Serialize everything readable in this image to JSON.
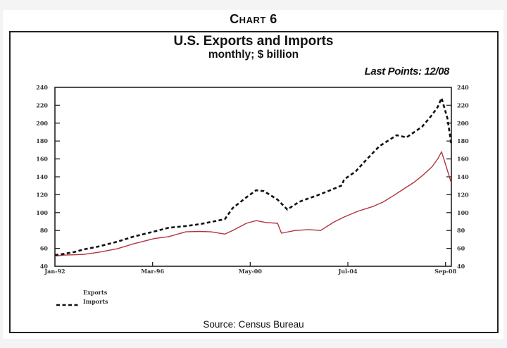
{
  "header": {
    "chart_number": "Chart 6",
    "title": "U.S. Exports and Imports",
    "subtitle": "monthly; $ billion",
    "last_points": "Last Points: 12/08"
  },
  "footer": {
    "source": "Source:  Census Bureau"
  },
  "colors": {
    "exports": "#b0353d",
    "imports": "#111111",
    "axis": "#222222"
  },
  "chart_data": {
    "type": "line",
    "title": "U.S. Exports and Imports",
    "subtitle": "monthly; $ billion",
    "xlabel": "",
    "ylabel": "$ billion",
    "x_unit": "months since Jan-92",
    "xlim": [
      0,
      203
    ],
    "ylim": [
      40,
      240
    ],
    "x_ticks": [
      {
        "label": "Jan-92",
        "month": 0
      },
      {
        "label": "Mar-96",
        "month": 50
      },
      {
        "label": "May-00",
        "month": 100
      },
      {
        "label": "Jul-04",
        "month": 150
      },
      {
        "label": "Sep-08",
        "month": 200
      }
    ],
    "y_ticks": [
      40,
      60,
      80,
      100,
      120,
      140,
      160,
      180,
      200,
      220,
      240
    ],
    "dual_y_axis": true,
    "grid": false,
    "legend": {
      "placement": "bottom-left",
      "entries": [
        "Exports",
        "Imports"
      ]
    },
    "series": [
      {
        "name": "Exports",
        "style": "solid",
        "x": [
          0,
          5,
          10,
          15,
          22,
          32,
          40,
          51,
          58,
          67,
          74,
          80,
          87,
          91,
          98,
          103,
          108,
          114,
          116,
          123,
          130,
          136,
          143,
          148,
          155,
          163,
          168,
          173,
          179,
          184,
          188,
          193,
          196,
          198,
          203
        ],
        "y": [
          51.5,
          52.5,
          52.8,
          53.4,
          55.5,
          59.6,
          65,
          71,
          73,
          78.5,
          79,
          78.5,
          76,
          80,
          88,
          91,
          89,
          88,
          77,
          80,
          81,
          80,
          89.6,
          95,
          101.4,
          107,
          111.7,
          118.5,
          127,
          134,
          141,
          151,
          160,
          168,
          133
        ]
      },
      {
        "name": "Imports",
        "style": "dashed",
        "x": [
          0,
          5,
          10,
          15,
          22,
          32,
          40,
          51,
          58,
          67,
          74,
          80,
          87,
          91,
          98,
          103,
          107,
          114,
          119,
          125,
          130,
          134,
          141,
          147,
          148,
          154,
          159,
          166,
          175,
          180,
          188,
          193,
          196,
          198,
          201,
          203
        ],
        "y": [
          52.6,
          54,
          56,
          59,
          62,
          67.5,
          73,
          79,
          83,
          85,
          87,
          89.5,
          92.7,
          105,
          117,
          125,
          124,
          114.5,
          103.5,
          112,
          116,
          119,
          125,
          130.5,
          137,
          146,
          158,
          174,
          186.5,
          184,
          196,
          209,
          218,
          228,
          205,
          176
        ]
      }
    ]
  }
}
